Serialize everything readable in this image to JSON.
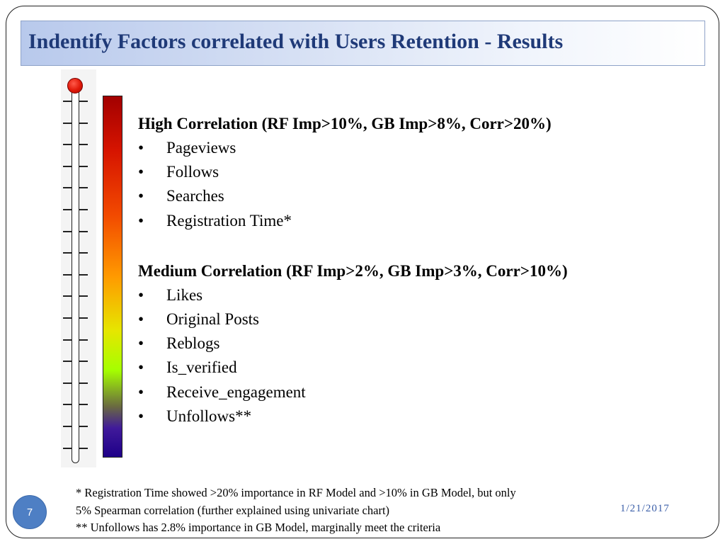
{
  "title": "Indentify Factors correlated with Users Retention - Results",
  "high": {
    "heading": "High Correlation (RF Imp>10%, GB Imp>8%, Corr>20%)",
    "items": [
      "Pageviews",
      "Follows",
      "Searches",
      "Registration Time*"
    ]
  },
  "medium": {
    "heading": "Medium Correlation (RF Imp>2%,  GB Imp>3%,  Corr>10%)",
    "items": [
      "Likes",
      "Original Posts",
      "Reblogs",
      "Is_verified",
      "Receive_engagement",
      "Unfollows**"
    ]
  },
  "bullet_char": "•",
  "footnotes": [
    "* Registration Time showed >20% importance in RF Model and >10% in GB Model, but only",
    "5% Spearman correlation (further explained using univariate chart)",
    "** Unfollows has 2.8% importance in GB Model, marginally meet the criteria"
  ],
  "page_number": "7",
  "date": "1/21/2017",
  "colors": {
    "title_text": "#1f3a78",
    "title_bar_start": "#b8c9ec",
    "page_circle": "#4e7fc4",
    "date_text": "#3a5ea8"
  }
}
